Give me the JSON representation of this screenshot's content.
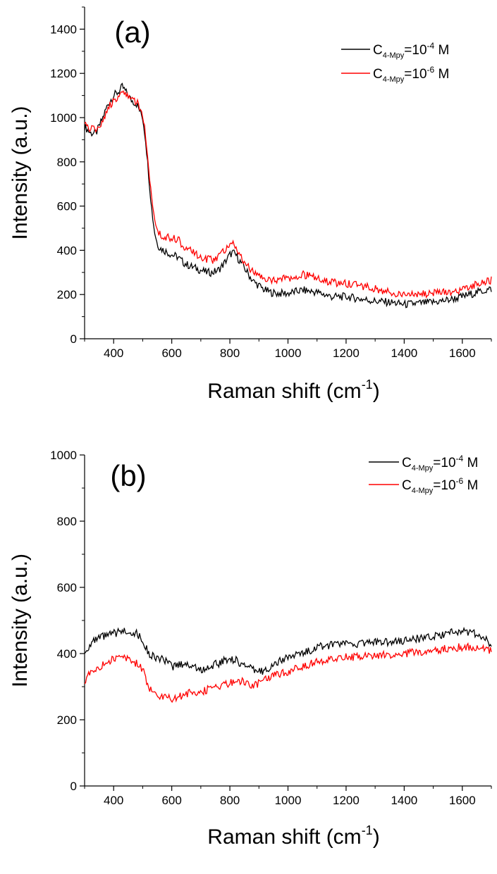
{
  "chart_data": [
    {
      "type": "line",
      "panel_label": "(a)",
      "xlabel": "Raman shift (cm",
      "xlabel_sup": "-1",
      "xlabel_close": ")",
      "ylabel": "Intensity (a.u.)",
      "xlim": [
        300,
        1700
      ],
      "ylim": [
        0,
        1500
      ],
      "xticks": [
        400,
        600,
        800,
        1000,
        1200,
        1400,
        1600
      ],
      "yticks": [
        0,
        200,
        400,
        600,
        800,
        1000,
        1200,
        1400
      ],
      "legend_position": "top-right",
      "series": [
        {
          "name": "C4-Mpy=10-4 M",
          "legend": {
            "base": "C",
            "sub": "4-Mpy",
            "mid": "=10",
            "sup": "-4",
            "end": " M"
          },
          "color": "#000000",
          "x": [
            300,
            320,
            340,
            360,
            380,
            400,
            420,
            430,
            440,
            460,
            480,
            500,
            510,
            520,
            530,
            540,
            550,
            560,
            580,
            600,
            620,
            640,
            660,
            680,
            700,
            720,
            740,
            760,
            780,
            800,
            810,
            820,
            840,
            860,
            880,
            900,
            920,
            940,
            960,
            980,
            1000,
            1050,
            1100,
            1150,
            1200,
            1250,
            1300,
            1350,
            1400,
            1450,
            1500,
            1550,
            1600,
            1650,
            1700
          ],
          "y": [
            960,
            930,
            930,
            990,
            1060,
            1100,
            1120,
            1140,
            1120,
            1080,
            1060,
            1000,
            900,
            750,
            600,
            490,
            430,
            410,
            395,
            380,
            370,
            345,
            330,
            320,
            310,
            300,
            300,
            310,
            340,
            380,
            390,
            380,
            340,
            300,
            260,
            240,
            220,
            210,
            205,
            205,
            205,
            220,
            210,
            190,
            190,
            180,
            170,
            165,
            155,
            160,
            165,
            175,
            190,
            210,
            225
          ]
        },
        {
          "name": "C4-Mpy=10-6 M",
          "legend": {
            "base": "C",
            "sub": "4-Mpy",
            "mid": "=10",
            "sup": "-6",
            "end": " M"
          },
          "color": "#ff0000",
          "x": [
            300,
            320,
            340,
            360,
            380,
            400,
            420,
            430,
            440,
            460,
            480,
            500,
            510,
            520,
            530,
            540,
            550,
            560,
            580,
            600,
            620,
            640,
            660,
            680,
            700,
            720,
            740,
            760,
            780,
            800,
            810,
            820,
            840,
            860,
            880,
            900,
            920,
            940,
            960,
            980,
            1000,
            1050,
            1100,
            1150,
            1200,
            1250,
            1300,
            1350,
            1400,
            1450,
            1500,
            1550,
            1600,
            1650,
            1700
          ],
          "y": [
            970,
            950,
            940,
            980,
            1040,
            1080,
            1100,
            1110,
            1100,
            1085,
            1070,
            1000,
            920,
            780,
            640,
            560,
            500,
            470,
            455,
            460,
            450,
            420,
            400,
            385,
            370,
            360,
            355,
            370,
            400,
            430,
            440,
            420,
            370,
            330,
            300,
            280,
            270,
            265,
            265,
            270,
            275,
            290,
            275,
            255,
            250,
            240,
            225,
            210,
            200,
            200,
            205,
            210,
            220,
            245,
            265
          ]
        }
      ]
    },
    {
      "type": "line",
      "panel_label": "(b)",
      "xlabel": "Raman shift (cm",
      "xlabel_sup": "-1",
      "xlabel_close": ")",
      "ylabel": "Intensity (a.u.)",
      "xlim": [
        300,
        1700
      ],
      "ylim": [
        0,
        1000
      ],
      "xticks": [
        400,
        600,
        800,
        1000,
        1200,
        1400,
        1600
      ],
      "yticks": [
        0,
        200,
        400,
        600,
        800,
        1000
      ],
      "legend_position": "top-right",
      "series": [
        {
          "name": "C4-Mpy=10-4 M",
          "legend": {
            "base": "C",
            "sub": "4-Mpy",
            "mid": "=10",
            "sup": "-4",
            "end": " M"
          },
          "color": "#000000",
          "x": [
            300,
            320,
            340,
            360,
            380,
            400,
            420,
            440,
            460,
            480,
            500,
            520,
            540,
            560,
            580,
            600,
            620,
            640,
            660,
            680,
            700,
            720,
            740,
            760,
            780,
            800,
            820,
            840,
            860,
            880,
            900,
            920,
            940,
            960,
            980,
            1000,
            1050,
            1100,
            1150,
            1200,
            1250,
            1300,
            1350,
            1400,
            1450,
            1500,
            1550,
            1600,
            1650,
            1700
          ],
          "y": [
            400,
            430,
            440,
            450,
            455,
            460,
            465,
            470,
            465,
            460,
            440,
            400,
            390,
            385,
            375,
            360,
            365,
            370,
            365,
            360,
            350,
            355,
            365,
            370,
            380,
            385,
            380,
            370,
            360,
            350,
            345,
            350,
            360,
            370,
            380,
            390,
            400,
            420,
            425,
            430,
            430,
            435,
            435,
            440,
            445,
            450,
            460,
            470,
            460,
            430
          ]
        },
        {
          "name": "C4-Mpy=10-6 M",
          "legend": {
            "base": "C",
            "sub": "4-Mpy",
            "mid": "=10",
            "sup": "-6",
            "end": " M"
          },
          "color": "#ff0000",
          "x": [
            300,
            320,
            340,
            360,
            380,
            400,
            420,
            440,
            460,
            480,
            500,
            520,
            540,
            560,
            580,
            600,
            620,
            640,
            660,
            680,
            700,
            720,
            740,
            760,
            780,
            800,
            820,
            840,
            860,
            880,
            900,
            920,
            940,
            960,
            980,
            1000,
            1050,
            1100,
            1150,
            1200,
            1250,
            1300,
            1350,
            1400,
            1450,
            1500,
            1550,
            1600,
            1650,
            1700
          ],
          "y": [
            320,
            340,
            355,
            365,
            375,
            385,
            390,
            385,
            380,
            370,
            350,
            300,
            280,
            270,
            265,
            265,
            270,
            275,
            280,
            285,
            285,
            290,
            295,
            300,
            305,
            310,
            315,
            315,
            310,
            305,
            310,
            320,
            330,
            335,
            340,
            345,
            360,
            375,
            385,
            390,
            390,
            395,
            395,
            400,
            405,
            410,
            415,
            420,
            420,
            410
          ]
        }
      ]
    }
  ]
}
